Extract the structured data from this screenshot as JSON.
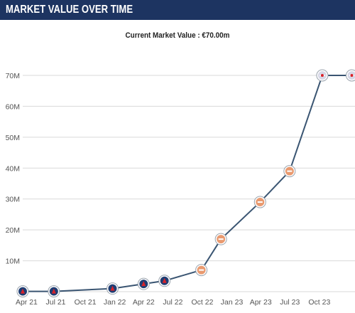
{
  "header": {
    "title": "MARKET VALUE OVER TIME"
  },
  "chart_data": {
    "type": "line",
    "title": "",
    "subtitle": "Current Market Value : €70.00m",
    "xlabel": "",
    "ylabel": "",
    "ylim": [
      0,
      70
    ],
    "y_ticks": [
      {
        "value": 0,
        "label": ""
      },
      {
        "value": 10,
        "label": "10M"
      },
      {
        "value": 20,
        "label": "20M"
      },
      {
        "value": 30,
        "label": "30M"
      },
      {
        "value": 40,
        "label": "40M"
      },
      {
        "value": 50,
        "label": "50M"
      },
      {
        "value": 60,
        "label": "60M"
      },
      {
        "value": 70,
        "label": "70M"
      }
    ],
    "xlim": [
      "2021-03-20",
      "2024-01-20"
    ],
    "x_ticks": [
      {
        "date": "2021-04-01",
        "label": "Apr 21"
      },
      {
        "date": "2021-07-01",
        "label": "Jul 21"
      },
      {
        "date": "2021-10-01",
        "label": "Oct 21"
      },
      {
        "date": "2022-01-01",
        "label": "Jan 22"
      },
      {
        "date": "2022-04-01",
        "label": "Apr 22"
      },
      {
        "date": "2022-07-01",
        "label": "Jul 22"
      },
      {
        "date": "2022-10-01",
        "label": "Oct 22"
      },
      {
        "date": "2023-01-01",
        "label": "Jan 23"
      },
      {
        "date": "2023-04-01",
        "label": "Apr 23"
      },
      {
        "date": "2023-07-01",
        "label": "Jul 23"
      },
      {
        "date": "2023-10-01",
        "label": "Oct 23"
      }
    ],
    "grid": true,
    "line_color": "#3a5572",
    "gridline_color": "#d9d9d9",
    "points": [
      {
        "date": "2021-03-20",
        "value": 0.1,
        "club_icon": "psg-crest-icon"
      },
      {
        "date": "2021-06-25",
        "value": 0.1,
        "club_icon": "psg-crest-icon"
      },
      {
        "date": "2021-12-25",
        "value": 1.0,
        "club_icon": "psg-crest-icon"
      },
      {
        "date": "2022-04-01",
        "value": 2.5,
        "club_icon": "psg-crest-icon"
      },
      {
        "date": "2022-06-05",
        "value": 3.5,
        "club_icon": "psg-crest-icon"
      },
      {
        "date": "2022-09-28",
        "value": 7.0,
        "club_icon": "arsenal-crest-icon"
      },
      {
        "date": "2022-11-28",
        "value": 17.0,
        "club_icon": "arsenal-crest-icon"
      },
      {
        "date": "2023-03-30",
        "value": 29.0,
        "club_icon": "arsenal-crest-icon"
      },
      {
        "date": "2023-06-30",
        "value": 39.0,
        "club_icon": "arsenal-crest-icon"
      },
      {
        "date": "2023-10-10",
        "value": 70.0,
        "club_icon": "arsenal-crest-icon"
      },
      {
        "date": "2024-01-10",
        "value": 70.0,
        "club_icon": "arsenal-crest-icon"
      }
    ]
  },
  "colors": {
    "header_bg": "#1d3461",
    "psg_marker": "#1f3d73",
    "arsenal_marker": "#e99a70",
    "current_marker": "#d7d7e6"
  }
}
